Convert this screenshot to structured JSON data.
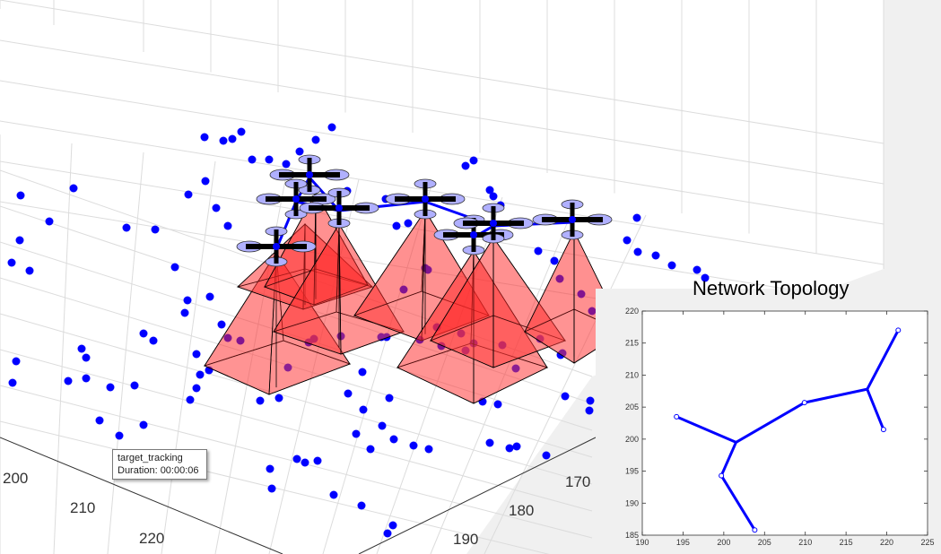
{
  "tooltip": {
    "title": "target_tracking",
    "duration": "Duration: 00:00:06"
  },
  "chart_data": [
    {
      "type": "scatter",
      "title": "",
      "x_ticks": [
        "200",
        "210",
        "220"
      ],
      "y_ticks": [
        "170",
        "180",
        "190"
      ],
      "marker_color": "#0000ff",
      "cone_color": "#ff3030",
      "link_color": "#0000ff"
    },
    {
      "type": "line",
      "title": "Network Topology",
      "xlim": [
        190,
        225
      ],
      "ylim": [
        185,
        220
      ],
      "x_ticks": [
        190,
        195,
        200,
        205,
        210,
        215,
        220,
        225
      ],
      "y_ticks": [
        185,
        190,
        195,
        200,
        205,
        210,
        215,
        220
      ],
      "nodes": [
        {
          "x": 194.2,
          "y": 203.5,
          "label": false
        },
        {
          "x": 199.7,
          "y": 194.3,
          "label": false
        },
        {
          "x": 203.8,
          "y": 185.8,
          "label": false
        },
        {
          "x": 209.9,
          "y": 205.7,
          "label": false
        },
        {
          "x": 219.6,
          "y": 201.5,
          "label": false
        },
        {
          "x": 221.4,
          "y": 217.0,
          "label": false
        }
      ],
      "junctions": [
        {
          "x": 201.5,
          "y": 199.5
        },
        {
          "x": 217.6,
          "y": 207.8
        }
      ],
      "edges": [
        [
          [
            194.2,
            203.5
          ],
          [
            201.5,
            199.5
          ]
        ],
        [
          [
            201.5,
            199.5
          ],
          [
            209.9,
            205.7
          ]
        ],
        [
          [
            201.5,
            199.5
          ],
          [
            199.7,
            194.3
          ]
        ],
        [
          [
            199.7,
            194.3
          ],
          [
            203.8,
            185.8
          ]
        ],
        [
          [
            209.9,
            205.7
          ],
          [
            217.6,
            207.8
          ]
        ],
        [
          [
            217.6,
            207.8
          ],
          [
            221.4,
            217.0
          ]
        ],
        [
          [
            217.6,
            207.8
          ],
          [
            219.6,
            201.5
          ]
        ]
      ],
      "line_color": "#0000ff"
    }
  ]
}
